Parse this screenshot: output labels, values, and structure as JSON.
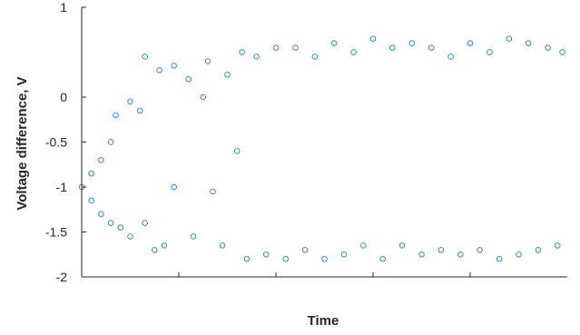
{
  "chart_data": {
    "type": "scatter",
    "title": "",
    "xlabel": "Time",
    "ylabel": "Voltage difference, V",
    "ylim": [
      -2,
      1
    ],
    "yticks": [
      1,
      0,
      -0.5,
      -1,
      -1.5,
      -2
    ],
    "ytick_labels": [
      "1",
      "0",
      "-0.5",
      "-1",
      "-1.5",
      "-2"
    ],
    "xlim": [
      0,
      1
    ],
    "xticks": [
      0.2,
      0.4,
      0.6,
      0.8
    ],
    "xtick_labels": [],
    "grid": false,
    "marker": "open-circle",
    "series": [
      {
        "color": "#0072BD",
        "points": [
          [
            0.0,
            -1.0
          ],
          [
            0.02,
            -0.85
          ],
          [
            0.02,
            -1.15
          ],
          [
            0.04,
            -0.7
          ],
          [
            0.04,
            -1.3
          ],
          [
            0.06,
            -0.5
          ],
          [
            0.06,
            -1.4
          ],
          [
            0.07,
            -0.2
          ],
          [
            0.08,
            -1.45
          ],
          [
            0.1,
            -0.05
          ],
          [
            0.1,
            -1.55
          ],
          [
            0.12,
            -0.15
          ],
          [
            0.13,
            -1.4
          ],
          [
            0.13,
            0.45
          ],
          [
            0.15,
            -1.7
          ],
          [
            0.16,
            0.3
          ],
          [
            0.17,
            -1.65
          ],
          [
            0.19,
            0.35
          ],
          [
            0.19,
            -1.0
          ],
          [
            0.22,
            0.2
          ],
          [
            0.23,
            -1.55
          ],
          [
            0.25,
            0.0
          ],
          [
            0.26,
            0.4
          ],
          [
            0.27,
            -1.05
          ],
          [
            0.29,
            -1.65
          ],
          [
            0.3,
            0.25
          ],
          [
            0.32,
            -0.6
          ],
          [
            0.33,
            0.5
          ],
          [
            0.34,
            -1.8
          ],
          [
            0.36,
            0.45
          ],
          [
            0.38,
            -1.75
          ],
          [
            0.4,
            0.55
          ],
          [
            0.42,
            -1.8
          ],
          [
            0.44,
            0.55
          ],
          [
            0.46,
            -1.7
          ],
          [
            0.48,
            0.45
          ],
          [
            0.5,
            -1.8
          ],
          [
            0.52,
            0.6
          ],
          [
            0.54,
            -1.75
          ],
          [
            0.56,
            0.5
          ],
          [
            0.58,
            -1.65
          ],
          [
            0.6,
            0.65
          ],
          [
            0.62,
            -1.8
          ],
          [
            0.64,
            0.55
          ],
          [
            0.66,
            -1.65
          ],
          [
            0.68,
            0.6
          ],
          [
            0.7,
            -1.75
          ],
          [
            0.72,
            0.55
          ],
          [
            0.74,
            -1.7
          ],
          [
            0.76,
            0.45
          ],
          [
            0.78,
            -1.75
          ],
          [
            0.8,
            0.6
          ],
          [
            0.82,
            -1.7
          ],
          [
            0.84,
            0.5
          ],
          [
            0.86,
            -1.8
          ],
          [
            0.88,
            0.65
          ],
          [
            0.9,
            -1.75
          ],
          [
            0.92,
            0.6
          ],
          [
            0.94,
            -1.7
          ],
          [
            0.96,
            0.55
          ],
          [
            0.98,
            -1.65
          ],
          [
            0.99,
            0.5
          ]
        ]
      }
    ]
  }
}
